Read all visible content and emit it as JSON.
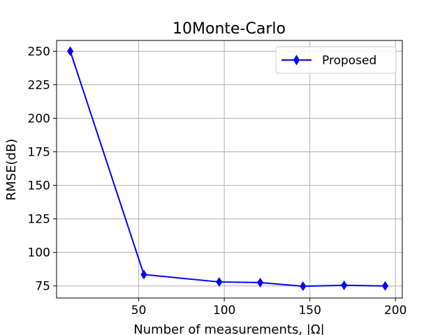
{
  "chart_data": {
    "type": "line",
    "title": "10Monte-Carlo",
    "xlabel": "Number of measurements, |Ω|",
    "ylabel": "RMSE(dB)",
    "xlim": [
      2,
      204
    ],
    "ylim": [
      66,
      258
    ],
    "xticks": [
      50,
      100,
      150,
      200
    ],
    "yticks": [
      75,
      100,
      125,
      150,
      175,
      200,
      225,
      250
    ],
    "grid": true,
    "legend": {
      "placement": "top-right",
      "entries": [
        "Proposed"
      ]
    },
    "series": [
      {
        "name": "Proposed",
        "color": "#0000ff",
        "marker": "diamond",
        "x": [
          10,
          53,
          97,
          121,
          146,
          170,
          194
        ],
        "y": [
          250,
          83.5,
          78,
          77.5,
          74.8,
          75.5,
          75
        ]
      }
    ]
  }
}
